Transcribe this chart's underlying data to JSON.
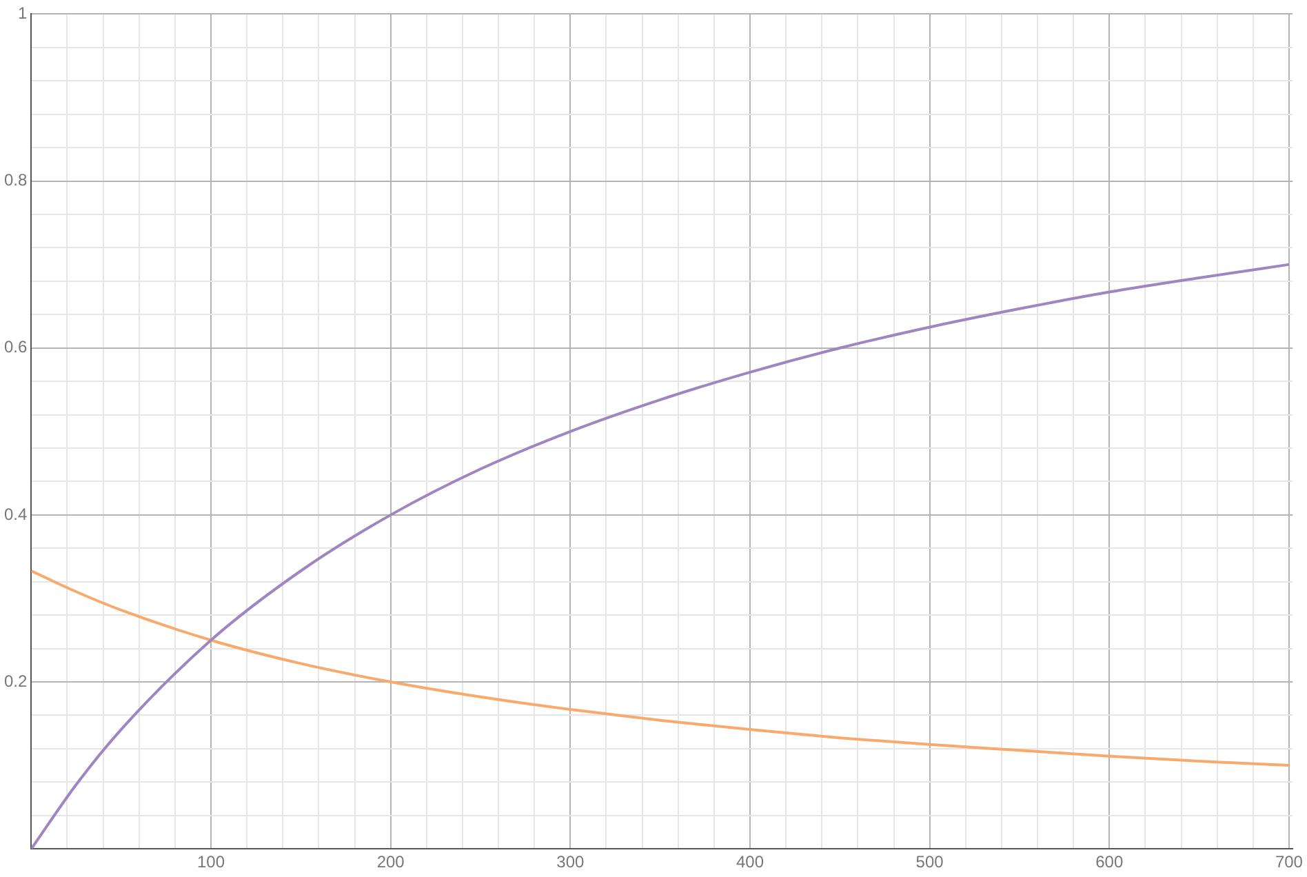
{
  "chart_data": {
    "type": "line",
    "x": [
      0,
      25,
      50,
      100,
      150,
      200,
      250,
      300,
      350,
      400,
      450,
      500,
      550,
      600,
      650,
      700
    ],
    "series": [
      {
        "color": "#9d86c1",
        "values": [
          0,
          0.077,
          0.143,
          0.25,
          0.333,
          0.4,
          0.455,
          0.5,
          0.538,
          0.571,
          0.6,
          0.625,
          0.647,
          0.667,
          0.684,
          0.7
        ]
      },
      {
        "color": "#f8aa6c",
        "values": [
          0.333,
          0.308,
          0.286,
          0.25,
          0.222,
          0.2,
          0.182,
          0.167,
          0.154,
          0.143,
          0.133,
          0.125,
          0.118,
          0.111,
          0.105,
          0.1
        ]
      }
    ],
    "xlim": [
      0,
      702
    ],
    "ylim": [
      0,
      1
    ],
    "xticks": [
      {
        "value": 20,
        "label": null
      },
      {
        "value": 40,
        "label": null
      },
      {
        "value": 60,
        "label": null
      },
      {
        "value": 80,
        "label": null
      },
      100,
      {
        "value": 120,
        "label": null
      },
      {
        "value": 140,
        "label": null
      },
      {
        "value": 160,
        "label": null
      },
      {
        "value": 180,
        "label": null
      },
      200,
      {
        "value": 220,
        "label": null
      },
      {
        "value": 240,
        "label": null
      },
      {
        "value": 260,
        "label": null
      },
      {
        "value": 280,
        "label": null
      },
      300,
      {
        "value": 320,
        "label": null
      },
      {
        "value": 340,
        "label": null
      },
      {
        "value": 360,
        "label": null
      },
      {
        "value": 380,
        "label": null
      },
      400,
      {
        "value": 420,
        "label": null
      },
      {
        "value": 440,
        "label": null
      },
      {
        "value": 460,
        "label": null
      },
      {
        "value": 480,
        "label": null
      },
      500,
      {
        "value": 520,
        "label": null
      },
      {
        "value": 540,
        "label": null
      },
      {
        "value": 560,
        "label": null
      },
      {
        "value": 580,
        "label": null
      },
      600,
      {
        "value": 620,
        "label": null
      },
      {
        "value": 640,
        "label": null
      },
      {
        "value": 660,
        "label": null
      },
      {
        "value": 680,
        "label": null
      },
      700
    ],
    "yticks": [
      {
        "value": 0.04,
        "label": null
      },
      {
        "value": 0.08,
        "label": null
      },
      {
        "value": 0.12,
        "label": null
      },
      {
        "value": 0.16,
        "label": null
      },
      0.2,
      {
        "value": 0.24,
        "label": null
      },
      {
        "value": 0.28,
        "label": null
      },
      {
        "value": 0.32,
        "label": null
      },
      {
        "value": 0.36,
        "label": null
      },
      0.4,
      {
        "value": 0.44,
        "label": null
      },
      {
        "value": 0.48,
        "label": null
      },
      {
        "value": 0.52,
        "label": null
      },
      {
        "value": 0.56,
        "label": null
      },
      0.6,
      {
        "value": 0.64,
        "label": null
      },
      {
        "value": 0.68,
        "label": null
      },
      {
        "value": 0.72,
        "label": null
      },
      {
        "value": 0.76,
        "label": null
      },
      0.8,
      {
        "value": 0.84,
        "label": null
      },
      {
        "value": 0.88,
        "label": null
      },
      {
        "value": 0.92,
        "label": null
      },
      {
        "value": 0.96,
        "label": null
      },
      1
    ],
    "grid": true,
    "marker": "none",
    "line_style": "solid"
  }
}
